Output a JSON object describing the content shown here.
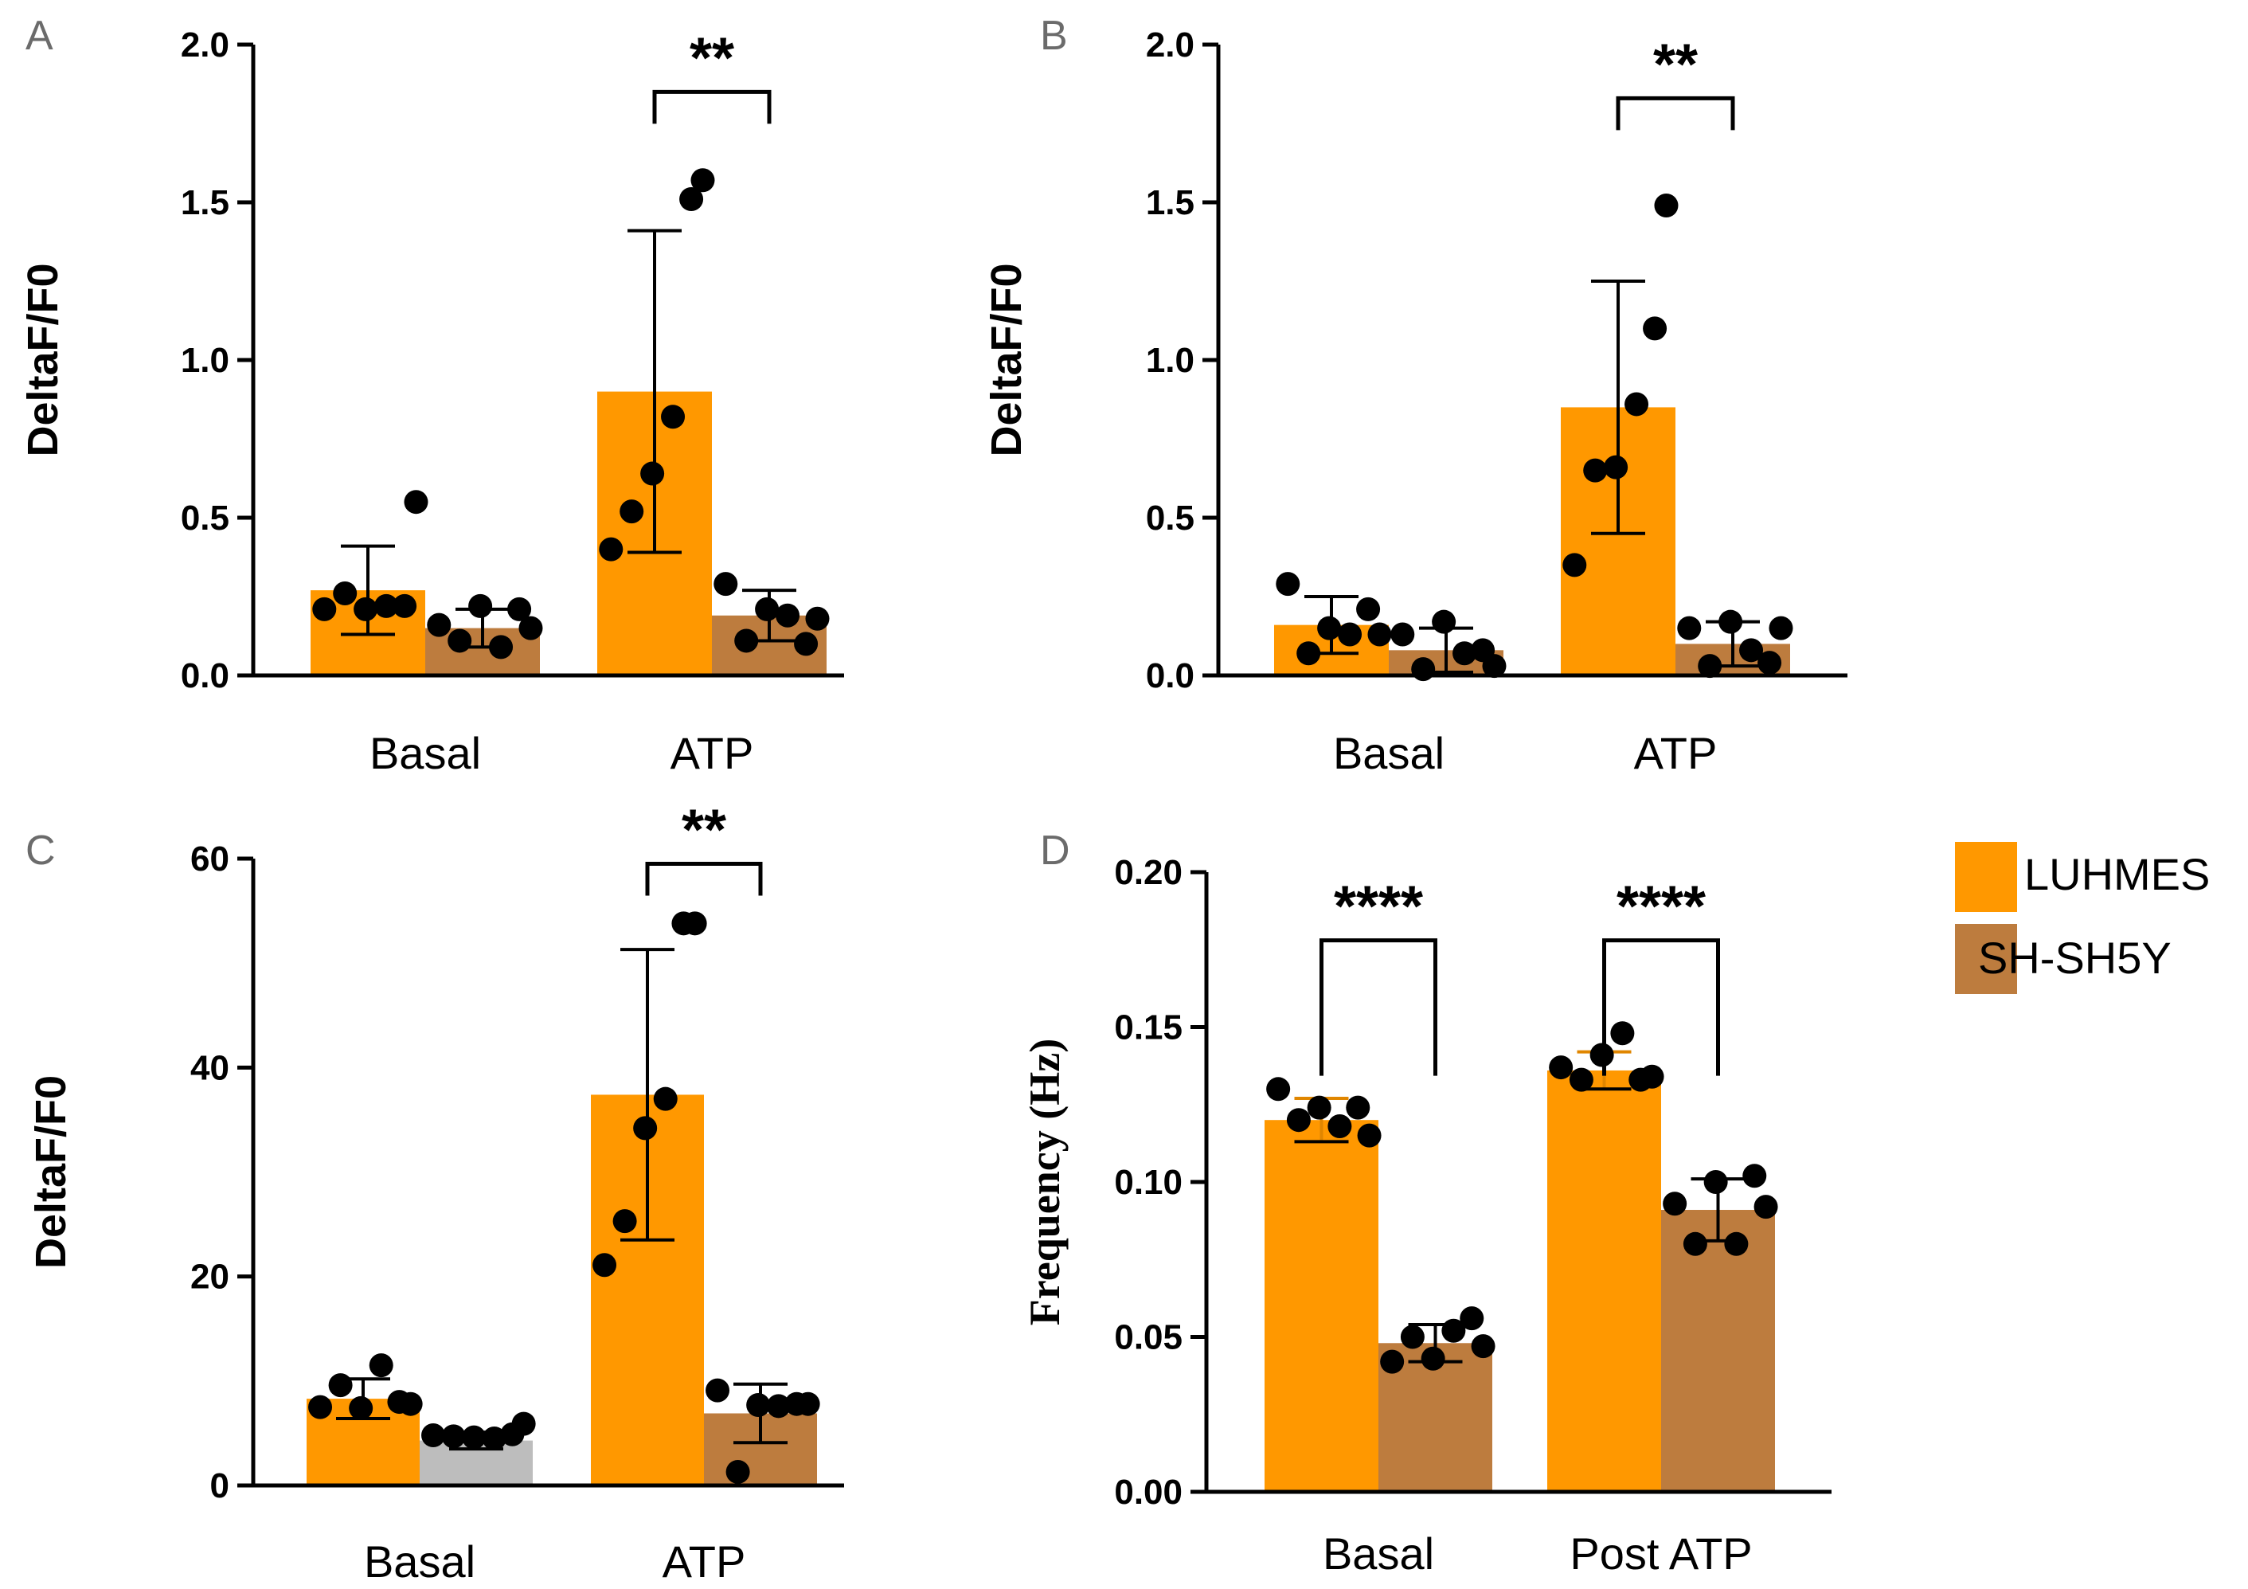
{
  "colors": {
    "luhmes": "#FF9800",
    "shsh5y": "#BD7C3E",
    "grey_bar": "#BDBDBD",
    "axis": "#000000",
    "panel_label": "#6B6B6B"
  },
  "legend": {
    "items": [
      {
        "label": "LUHMES",
        "color": "#FF9800"
      },
      {
        "label": "SH-SH5Y",
        "color": "#BD7C3E"
      }
    ]
  },
  "chart_data": [
    {
      "id": "A",
      "panel_label": "A",
      "type": "bar",
      "ylabel": "DeltaF/F0",
      "ylabel_font": "sans",
      "ylim": [
        0,
        2.0
      ],
      "yticks": [
        "0.0",
        "0.5",
        "1.0",
        "1.5",
        "2.0"
      ],
      "ytick_values": [
        0,
        0.5,
        1.0,
        1.5,
        2.0
      ],
      "categories": [
        "Basal",
        "ATP"
      ],
      "series": [
        {
          "name": "LUHMES",
          "values": [
            0.27,
            0.9
          ],
          "errors": [
            0.14,
            0.51
          ],
          "points": [
            [
              0.21,
              0.26,
              0.21,
              0.22,
              0.22,
              0.55
            ],
            [
              0.4,
              0.52,
              0.64,
              0.82,
              1.51,
              1.57
            ]
          ]
        },
        {
          "name": "SH-SH5Y",
          "values": [
            0.15,
            0.19
          ],
          "errors": [
            0.06,
            0.08
          ],
          "points": [
            [
              0.16,
              0.11,
              0.22,
              0.09,
              0.21,
              0.15
            ],
            [
              0.29,
              0.11,
              0.21,
              0.19,
              0.1,
              0.18
            ]
          ]
        }
      ],
      "bar_colors": [
        [
          "#FF9800",
          "#BD7C3E"
        ],
        [
          "#FF9800",
          "#BD7C3E"
        ]
      ],
      "significance": {
        "category_index": 1,
        "label": "**",
        "from_series": 0,
        "to_series": 1,
        "y": 1.85
      }
    },
    {
      "id": "B",
      "panel_label": "B",
      "type": "bar",
      "ylabel": "DeltaF/F0",
      "ylabel_font": "sans",
      "ylim": [
        0,
        2.0
      ],
      "yticks": [
        "0.0",
        "0.5",
        "1.0",
        "1.5",
        "2.0"
      ],
      "ytick_values": [
        0,
        0.5,
        1.0,
        1.5,
        2.0
      ],
      "categories": [
        "Basal",
        "ATP"
      ],
      "series": [
        {
          "name": "LUHMES",
          "values": [
            0.16,
            0.85
          ],
          "errors": [
            0.09,
            0.4
          ],
          "points": [
            [
              0.29,
              0.07,
              0.15,
              0.13,
              0.21,
              0.13
            ],
            [
              0.35,
              0.65,
              0.66,
              0.86,
              1.1,
              1.49
            ]
          ]
        },
        {
          "name": "SH-SH5Y",
          "values": [
            0.08,
            0.1
          ],
          "errors": [
            0.07,
            0.07
          ],
          "points": [
            [
              0.13,
              0.02,
              0.17,
              0.07,
              0.08,
              0.03
            ],
            [
              0.15,
              0.03,
              0.17,
              0.08,
              0.04,
              0.15
            ]
          ]
        }
      ],
      "bar_colors": [
        [
          "#FF9800",
          "#BD7C3E"
        ],
        [
          "#FF9800",
          "#BD7C3E"
        ]
      ],
      "significance": {
        "category_index": 1,
        "label": "**",
        "from_series": 0,
        "to_series": 1,
        "y": 1.83
      }
    },
    {
      "id": "C",
      "panel_label": "C",
      "type": "bar",
      "ylabel": "DeltaF/F0",
      "ylabel_font": "sans",
      "ylim": [
        0,
        60
      ],
      "yticks": [
        "0",
        "20",
        "40",
        "60"
      ],
      "ytick_values": [
        0,
        20,
        40,
        60
      ],
      "categories": [
        "Basal",
        "ATP"
      ],
      "series": [
        {
          "name": "LUHMES",
          "values": [
            8.3,
            37.4
          ],
          "errors": [
            1.9,
            13.9
          ],
          "points": [
            [
              7.5,
              9.6,
              7.4,
              11.5,
              8.0,
              7.8
            ],
            [
              21.1,
              25.3,
              34.2,
              37.0,
              53.8,
              53.8
            ]
          ]
        },
        {
          "name": "SH-SH5Y",
          "values": [
            4.3,
            6.9
          ],
          "errors": [
            0.8,
            2.8
          ],
          "points": [
            [
              4.8,
              4.7,
              4.6,
              4.5,
              4.9,
              5.9
            ],
            [
              9.1,
              1.3,
              7.7,
              7.6,
              7.8,
              7.8
            ]
          ]
        }
      ],
      "bar_colors": [
        [
          "#FF9800",
          "#BDBDBD"
        ],
        [
          "#FF9800",
          "#BD7C3E"
        ]
      ],
      "significance": {
        "category_index": 1,
        "label": "**",
        "from_series": 0,
        "to_series": 1,
        "y": 59.5
      }
    },
    {
      "id": "D",
      "panel_label": "D",
      "type": "bar",
      "ylabel": "Frequency (Hz)",
      "ylabel_font": "serif",
      "ylim": [
        0,
        0.2
      ],
      "yticks": [
        "0.00",
        "0.05",
        "0.10",
        "0.15",
        "0.20"
      ],
      "ytick_values": [
        0,
        0.05,
        0.1,
        0.15,
        0.2
      ],
      "categories": [
        "Basal",
        "Post ATP"
      ],
      "series": [
        {
          "name": "LUHMES",
          "values": [
            0.12,
            0.136
          ],
          "errors": [
            0.007,
            0.006
          ],
          "points": [
            [
              0.13,
              0.12,
              0.124,
              0.118,
              0.124,
              0.115
            ],
            [
              0.137,
              0.133,
              0.141,
              0.148,
              0.133,
              0.134
            ]
          ]
        },
        {
          "name": "SH-SH5Y",
          "values": [
            0.048,
            0.091
          ],
          "errors": [
            0.006,
            0.01
          ],
          "points": [
            [
              0.042,
              0.05,
              0.043,
              0.052,
              0.056,
              0.047
            ],
            [
              0.093,
              0.08,
              0.1,
              0.08,
              0.102,
              0.092
            ]
          ]
        }
      ],
      "bar_colors": [
        [
          "#FF9800",
          "#BD7C3E"
        ],
        [
          "#FF9800",
          "#BD7C3E"
        ]
      ],
      "significance": [
        {
          "category_index": 0,
          "label": "****",
          "y": 0.178
        },
        {
          "category_index": 1,
          "label": "****",
          "y": 0.178
        }
      ]
    }
  ]
}
